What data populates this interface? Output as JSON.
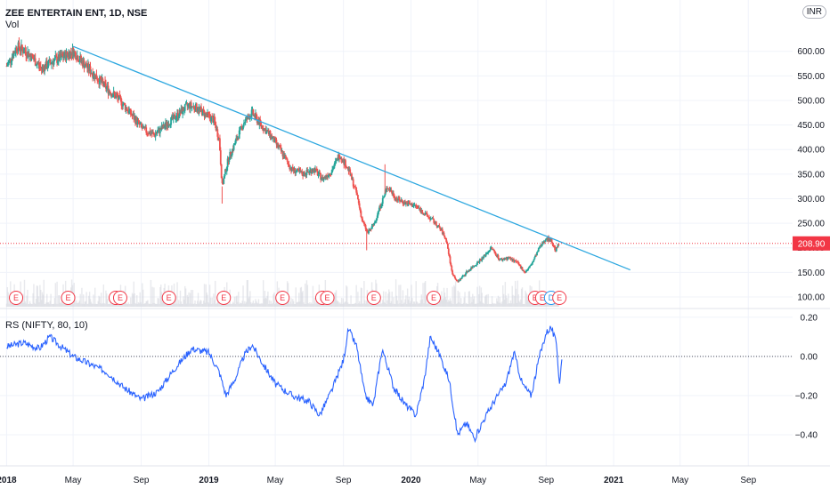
{
  "header": {
    "symbol": "ZEE ENTERTAIN ENT, 1D, NSE",
    "volume_label": "Vol",
    "indicator_label": "RS (NIFTY, 80, 10)",
    "currency": "INR"
  },
  "chart_data": [
    {
      "type": "candlestick",
      "title": "ZEE ENTERTAIN ENT, 1D, NSE",
      "ylim": [
        80,
        690
      ],
      "y_ticks": [
        100,
        150,
        200,
        250,
        300,
        350,
        400,
        450,
        500,
        550,
        600
      ],
      "y_tick_labels": [
        "100.00",
        "150.00",
        "200.00",
        "250.00",
        "300.00",
        "350.00",
        "400.00",
        "450.00",
        "500.00",
        "550.00",
        "600.00"
      ],
      "last_price": 208.9,
      "last_price_label": "208.90",
      "price_path": [
        [
          "2018-01-01",
          570
        ],
        [
          "2018-01-20",
          610
        ],
        [
          "2018-02-10",
          595
        ],
        [
          "2018-03-05",
          565
        ],
        [
          "2018-03-25",
          580
        ],
        [
          "2018-04-15",
          590
        ],
        [
          "2018-05-01",
          600
        ],
        [
          "2018-05-20",
          575
        ],
        [
          "2018-06-10",
          550
        ],
        [
          "2018-07-05",
          520
        ],
        [
          "2018-07-25",
          500
        ],
        [
          "2018-08-15",
          470
        ],
        [
          "2018-09-05",
          440
        ],
        [
          "2018-09-25",
          430
        ],
        [
          "2018-10-15",
          450
        ],
        [
          "2018-11-05",
          470
        ],
        [
          "2018-11-25",
          490
        ],
        [
          "2018-12-10",
          485
        ],
        [
          "2018-12-28",
          470
        ],
        [
          "2019-01-10",
          460
        ],
        [
          "2019-01-20",
          420
        ],
        [
          "2019-01-25",
          325
        ],
        [
          "2019-02-05",
          380
        ],
        [
          "2019-02-20",
          420
        ],
        [
          "2019-03-05",
          455
        ],
        [
          "2019-03-20",
          475
        ],
        [
          "2019-04-05",
          450
        ],
        [
          "2019-04-25",
          425
        ],
        [
          "2019-05-15",
          390
        ],
        [
          "2019-05-30",
          360
        ],
        [
          "2019-06-20",
          350
        ],
        [
          "2019-07-10",
          360
        ],
        [
          "2019-07-25",
          340
        ],
        [
          "2019-08-10",
          355
        ],
        [
          "2019-08-25",
          390
        ],
        [
          "2019-09-10",
          360
        ],
        [
          "2019-09-25",
          310
        ],
        [
          "2019-10-05",
          255
        ],
        [
          "2019-10-15",
          230
        ],
        [
          "2019-10-25",
          245
        ],
        [
          "2019-11-05",
          280
        ],
        [
          "2019-11-20",
          325
        ],
        [
          "2019-12-05",
          300
        ],
        [
          "2019-12-25",
          290
        ],
        [
          "2020-01-10",
          285
        ],
        [
          "2020-01-25",
          270
        ],
        [
          "2020-02-10",
          255
        ],
        [
          "2020-02-25",
          235
        ],
        [
          "2020-03-05",
          215
        ],
        [
          "2020-03-15",
          150
        ],
        [
          "2020-03-25",
          130
        ],
        [
          "2020-04-10",
          150
        ],
        [
          "2020-04-25",
          165
        ],
        [
          "2020-05-10",
          180
        ],
        [
          "2020-05-25",
          200
        ],
        [
          "2020-06-10",
          175
        ],
        [
          "2020-06-25",
          180
        ],
        [
          "2020-07-10",
          170
        ],
        [
          "2020-07-25",
          150
        ],
        [
          "2020-08-05",
          165
        ],
        [
          "2020-08-20",
          200
        ],
        [
          "2020-09-01",
          220
        ],
        [
          "2020-09-10",
          215
        ],
        [
          "2020-09-18",
          195
        ],
        [
          "2020-09-25",
          209
        ]
      ],
      "trendline": {
        "start": [
          "2018-05-01",
          610
        ],
        "end": [
          "2021-01-31",
          155
        ]
      },
      "earnings_events": [
        {
          "date": "2018-01-18",
          "label": "E"
        },
        {
          "date": "2018-04-22",
          "label": "E"
        },
        {
          "date": "2018-07-17",
          "label": "E"
        },
        {
          "date": "2018-07-25",
          "label": "E"
        },
        {
          "date": "2018-10-21",
          "label": "E"
        },
        {
          "date": "2019-01-28",
          "label": "E"
        },
        {
          "date": "2019-05-14",
          "label": "E"
        },
        {
          "date": "2019-07-25",
          "label": "E"
        },
        {
          "date": "2019-08-03",
          "label": "E"
        },
        {
          "date": "2019-10-26",
          "label": "E"
        },
        {
          "date": "2020-02-11",
          "label": "E"
        },
        {
          "date": "2020-08-12",
          "label": "E"
        },
        {
          "date": "2020-08-25",
          "label": "E"
        },
        {
          "date": "2020-09-10",
          "label": "D"
        },
        {
          "date": "2020-09-25",
          "label": "E"
        }
      ]
    },
    {
      "type": "line",
      "title": "RS (NIFTY, 80, 10)",
      "ylim": [
        -0.55,
        0.24
      ],
      "y_ticks": [
        0.2,
        0,
        -0.2,
        -0.4
      ],
      "y_tick_labels": [
        "0.20",
        "0.00",
        "−0.20",
        "−0.40"
      ],
      "zero_line": 0,
      "series": [
        {
          "values": [
            [
              "2018-01-01",
              0.05
            ],
            [
              "2018-02-01",
              0.07
            ],
            [
              "2018-03-01",
              0.04
            ],
            [
              "2018-03-20",
              0.1
            ],
            [
              "2018-04-05",
              0.06
            ],
            [
              "2018-05-01",
              0.0
            ],
            [
              "2018-06-01",
              -0.04
            ],
            [
              "2018-07-01",
              -0.08
            ],
            [
              "2018-08-01",
              -0.16
            ],
            [
              "2018-09-01",
              -0.22
            ],
            [
              "2018-10-01",
              -0.18
            ],
            [
              "2018-11-01",
              -0.06
            ],
            [
              "2018-12-01",
              0.04
            ],
            [
              "2019-01-01",
              0.02
            ],
            [
              "2019-01-20",
              -0.08
            ],
            [
              "2019-02-01",
              -0.2
            ],
            [
              "2019-02-20",
              -0.1
            ],
            [
              "2019-03-05",
              0.0
            ],
            [
              "2019-03-20",
              0.06
            ],
            [
              "2019-04-05",
              -0.02
            ],
            [
              "2019-05-01",
              -0.14
            ],
            [
              "2019-06-01",
              -0.2
            ],
            [
              "2019-07-01",
              -0.23
            ],
            [
              "2019-07-20",
              -0.3
            ],
            [
              "2019-08-10",
              -0.18
            ],
            [
              "2019-09-01",
              -0.02
            ],
            [
              "2019-09-10",
              0.14
            ],
            [
              "2019-09-25",
              0.05
            ],
            [
              "2019-10-10",
              -0.2
            ],
            [
              "2019-10-25",
              -0.25
            ],
            [
              "2019-11-10",
              0.04
            ],
            [
              "2019-12-01",
              -0.16
            ],
            [
              "2019-12-20",
              -0.24
            ],
            [
              "2020-01-10",
              -0.3
            ],
            [
              "2020-01-25",
              -0.12
            ],
            [
              "2020-02-05",
              0.1
            ],
            [
              "2020-02-20",
              0.02
            ],
            [
              "2020-03-10",
              -0.12
            ],
            [
              "2020-03-25",
              -0.4
            ],
            [
              "2020-04-10",
              -0.34
            ],
            [
              "2020-04-25",
              -0.42
            ],
            [
              "2020-05-10",
              -0.33
            ],
            [
              "2020-06-01",
              -0.22
            ],
            [
              "2020-06-20",
              -0.14
            ],
            [
              "2020-07-05",
              0.02
            ],
            [
              "2020-07-20",
              -0.14
            ],
            [
              "2020-08-05",
              -0.2
            ],
            [
              "2020-08-20",
              0.0
            ],
            [
              "2020-09-01",
              0.12
            ],
            [
              "2020-09-10",
              0.15
            ],
            [
              "2020-09-20",
              0.06
            ],
            [
              "2020-09-25",
              -0.14
            ],
            [
              "2020-09-30",
              0.0
            ]
          ]
        }
      ]
    }
  ],
  "time_axis": {
    "range": [
      "2017-12-20",
      "2021-11-20"
    ],
    "ticks": [
      {
        "date": "2018-01-01",
        "label": "2018",
        "year": true
      },
      {
        "date": "2018-05-01",
        "label": "May",
        "year": false
      },
      {
        "date": "2018-09-01",
        "label": "Sep",
        "year": false
      },
      {
        "date": "2019-01-01",
        "label": "2019",
        "year": true
      },
      {
        "date": "2019-05-01",
        "label": "May",
        "year": false
      },
      {
        "date": "2019-09-01",
        "label": "Sep",
        "year": false
      },
      {
        "date": "2020-01-01",
        "label": "2020",
        "year": true
      },
      {
        "date": "2020-05-01",
        "label": "May",
        "year": false
      },
      {
        "date": "2020-09-01",
        "label": "Sep",
        "year": false
      },
      {
        "date": "2021-01-01",
        "label": "2021",
        "year": true
      },
      {
        "date": "2021-05-01",
        "label": "May",
        "year": false
      },
      {
        "date": "2021-09-01",
        "label": "Sep",
        "year": false
      }
    ]
  },
  "colors": {
    "up": "#26a69a",
    "down": "#ef5350",
    "trendline": "#2ea8e0",
    "rs_line": "#2962ff",
    "price_tag": "#f23645",
    "grid": "#f0f3fa",
    "earnings": "#f23645",
    "dividend": "#2196f3",
    "volume": "#d1d4dc"
  }
}
